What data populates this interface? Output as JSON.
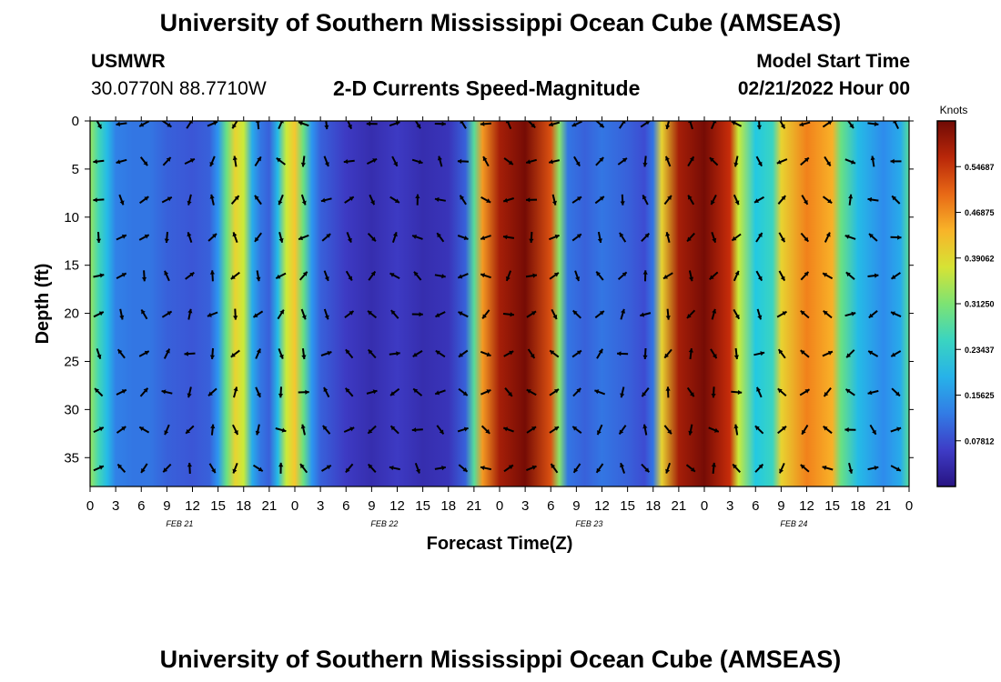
{
  "page": {
    "title": "University of Southern Mississippi Ocean Cube (AMSEAS)",
    "footer_title": "University of Southern Mississippi Ocean Cube (AMSEAS)"
  },
  "station": {
    "name": "USMWR",
    "coords": "30.0770N  88.7710W"
  },
  "model": {
    "label": "Model Start Time",
    "value": "02/21/2022 Hour 00"
  },
  "chart_data": {
    "type": "heatmap",
    "title": "2-D Currents Speed-Magnitude",
    "xlabel": "Forecast Time(Z)",
    "ylabel": "Depth (ft)",
    "x_start": 0,
    "x_end": 96,
    "x_ticks": [
      0,
      3,
      6,
      9,
      12,
      15,
      18,
      21,
      24,
      27,
      30,
      33,
      36,
      39,
      42,
      45,
      48,
      51,
      54,
      57,
      60,
      63,
      66,
      69,
      72,
      75,
      78,
      81,
      84,
      87,
      90,
      93,
      96
    ],
    "x_tick_labels": [
      "0",
      "3",
      "6",
      "9",
      "12",
      "15",
      "18",
      "21",
      "0",
      "3",
      "6",
      "9",
      "12",
      "15",
      "18",
      "21",
      "0",
      "3",
      "6",
      "9",
      "12",
      "15",
      "18",
      "21",
      "0",
      "3",
      "6",
      "9",
      "12",
      "15",
      "18",
      "21",
      "0"
    ],
    "date_labels": [
      {
        "hour": 10.5,
        "text": "FEB 21"
      },
      {
        "hour": 34.5,
        "text": "FEB 22"
      },
      {
        "hour": 58.5,
        "text": "FEB 23"
      },
      {
        "hour": 82.5,
        "text": "FEB 24"
      }
    ],
    "ylim": [
      0,
      38
    ],
    "y_ticks": [
      0,
      5,
      10,
      15,
      20,
      25,
      30,
      35
    ],
    "colorbar": {
      "title": "Knots",
      "min": 0,
      "max": 0.625,
      "tick_values": [
        0.078125,
        0.15625,
        0.234375,
        0.3125,
        0.390625,
        0.46875,
        0.546875
      ],
      "tick_labels": [
        "0.07812",
        "0.15625",
        "0.23437",
        "0.31250",
        "0.39062",
        "0.46875",
        "0.54687"
      ]
    },
    "speed_profile": [
      {
        "h": 0,
        "s": 0.33
      },
      {
        "h": 1,
        "s": 0.26
      },
      {
        "h": 2,
        "s": 0.2
      },
      {
        "h": 3,
        "s": 0.13
      },
      {
        "h": 5,
        "s": 0.12
      },
      {
        "h": 7,
        "s": 0.12
      },
      {
        "h": 9,
        "s": 0.1
      },
      {
        "h": 12,
        "s": 0.09
      },
      {
        "h": 14,
        "s": 0.1
      },
      {
        "h": 15,
        "s": 0.15
      },
      {
        "h": 16,
        "s": 0.3
      },
      {
        "h": 17,
        "s": 0.4
      },
      {
        "h": 18,
        "s": 0.36
      },
      {
        "h": 19,
        "s": 0.18
      },
      {
        "h": 20,
        "s": 0.12
      },
      {
        "h": 21,
        "s": 0.1
      },
      {
        "h": 22,
        "s": 0.2
      },
      {
        "h": 23,
        "s": 0.36
      },
      {
        "h": 24,
        "s": 0.42
      },
      {
        "h": 25,
        "s": 0.3
      },
      {
        "h": 26,
        "s": 0.15
      },
      {
        "h": 27,
        "s": 0.1
      },
      {
        "h": 30,
        "s": 0.06
      },
      {
        "h": 33,
        "s": 0.04
      },
      {
        "h": 36,
        "s": 0.06
      },
      {
        "h": 39,
        "s": 0.04
      },
      {
        "h": 42,
        "s": 0.05
      },
      {
        "h": 44,
        "s": 0.1
      },
      {
        "h": 45,
        "s": 0.28
      },
      {
        "h": 46,
        "s": 0.46
      },
      {
        "h": 48,
        "s": 0.58
      },
      {
        "h": 51,
        "s": 0.62
      },
      {
        "h": 54,
        "s": 0.52
      },
      {
        "h": 55,
        "s": 0.32
      },
      {
        "h": 56,
        "s": 0.12
      },
      {
        "h": 58,
        "s": 0.1
      },
      {
        "h": 60,
        "s": 0.12
      },
      {
        "h": 63,
        "s": 0.1
      },
      {
        "h": 65,
        "s": 0.08
      },
      {
        "h": 66,
        "s": 0.12
      },
      {
        "h": 67,
        "s": 0.4
      },
      {
        "h": 69,
        "s": 0.58
      },
      {
        "h": 72,
        "s": 0.62
      },
      {
        "h": 75,
        "s": 0.55
      },
      {
        "h": 76,
        "s": 0.36
      },
      {
        "h": 78,
        "s": 0.22
      },
      {
        "h": 80,
        "s": 0.25
      },
      {
        "h": 81,
        "s": 0.4
      },
      {
        "h": 84,
        "s": 0.48
      },
      {
        "h": 87,
        "s": 0.44
      },
      {
        "h": 88,
        "s": 0.3
      },
      {
        "h": 90,
        "s": 0.2
      },
      {
        "h": 93,
        "s": 0.14
      },
      {
        "h": 95,
        "s": 0.18
      },
      {
        "h": 96,
        "s": 0.28
      }
    ]
  }
}
